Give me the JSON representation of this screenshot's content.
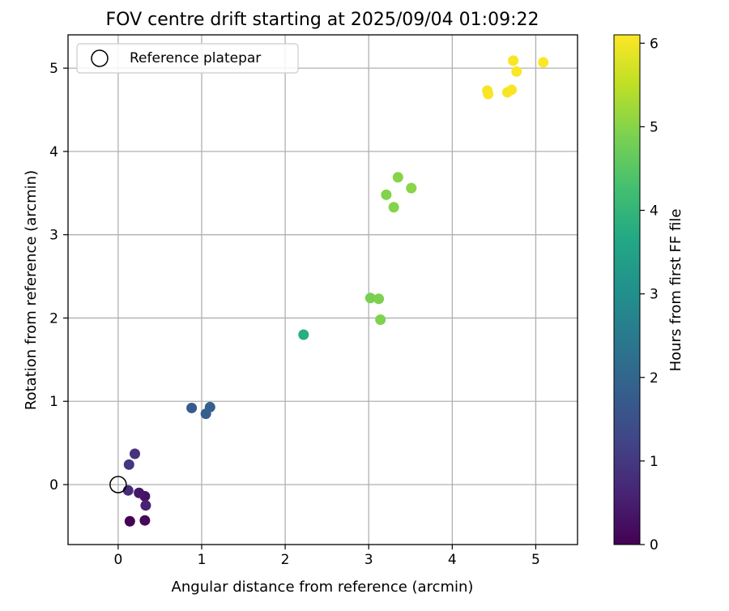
{
  "chart_data": {
    "type": "scatter",
    "title": "FOV centre drift starting at 2025/09/04 01:09:22",
    "xlabel": "Angular distance from reference (arcmin)",
    "ylabel": "Rotation from reference (arcmin)",
    "xlim": [
      -0.6,
      5.5
    ],
    "ylim": [
      -0.72,
      5.4
    ],
    "xticks": [
      0,
      1,
      2,
      3,
      4,
      5
    ],
    "yticks": [
      0,
      1,
      2,
      3,
      4,
      5
    ],
    "grid": true,
    "legend": {
      "position": "top-left",
      "entries": [
        "Reference platepar"
      ]
    },
    "reference_point": {
      "x": 0,
      "y": 0,
      "label": "Reference platepar"
    },
    "colorbar": {
      "label": "Hours from first FF file",
      "colormap": "viridis",
      "range": [
        0,
        6.1
      ],
      "ticks": [
        0,
        1,
        2,
        3,
        4,
        5,
        6
      ]
    },
    "points": [
      {
        "x": 0.14,
        "y": -0.44,
        "c": 0.02
      },
      {
        "x": 0.32,
        "y": -0.43,
        "c": 0.12
      },
      {
        "x": 0.32,
        "y": -0.14,
        "c": 0.28
      },
      {
        "x": 0.25,
        "y": -0.1,
        "c": 0.38
      },
      {
        "x": 0.33,
        "y": -0.25,
        "c": 0.55
      },
      {
        "x": 0.12,
        "y": -0.07,
        "c": 0.72
      },
      {
        "x": 0.13,
        "y": 0.24,
        "c": 0.95
      },
      {
        "x": 0.2,
        "y": 0.37,
        "c": 0.85
      },
      {
        "x": 0.88,
        "y": 0.92,
        "c": 1.75
      },
      {
        "x": 1.05,
        "y": 0.85,
        "c": 1.8
      },
      {
        "x": 1.1,
        "y": 0.93,
        "c": 1.85
      },
      {
        "x": 2.22,
        "y": 1.8,
        "c": 3.8
      },
      {
        "x": 3.02,
        "y": 2.24,
        "c": 4.85
      },
      {
        "x": 3.12,
        "y": 2.23,
        "c": 4.9
      },
      {
        "x": 3.14,
        "y": 1.98,
        "c": 4.92
      },
      {
        "x": 3.21,
        "y": 3.48,
        "c": 4.95
      },
      {
        "x": 3.3,
        "y": 3.33,
        "c": 4.98
      },
      {
        "x": 3.35,
        "y": 3.69,
        "c": 5.0
      },
      {
        "x": 3.51,
        "y": 3.56,
        "c": 5.02
      },
      {
        "x": 4.42,
        "y": 4.73,
        "c": 6.02
      },
      {
        "x": 4.43,
        "y": 4.69,
        "c": 6.03
      },
      {
        "x": 4.66,
        "y": 4.71,
        "c": 6.04
      },
      {
        "x": 4.71,
        "y": 4.74,
        "c": 6.05
      },
      {
        "x": 4.73,
        "y": 5.09,
        "c": 6.06
      },
      {
        "x": 4.77,
        "y": 4.96,
        "c": 6.07
      },
      {
        "x": 5.09,
        "y": 5.07,
        "c": 6.08
      }
    ]
  }
}
